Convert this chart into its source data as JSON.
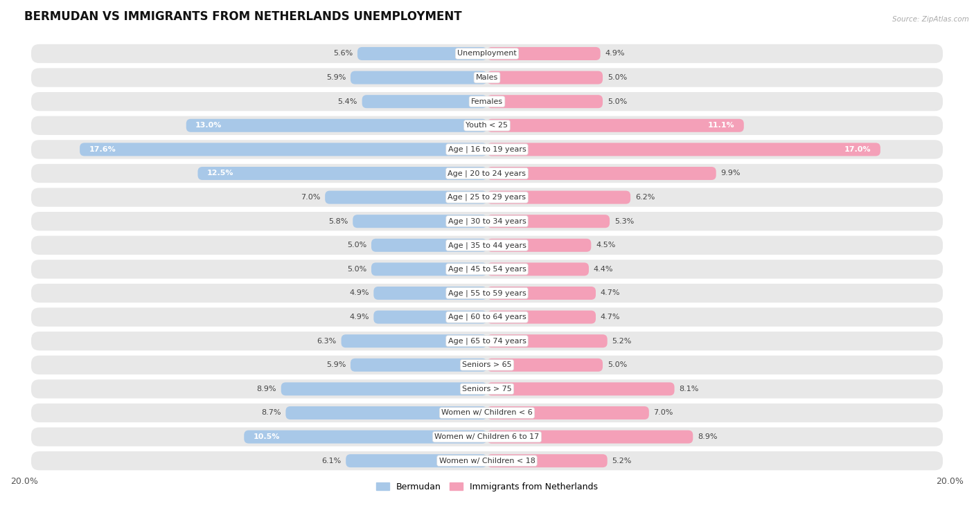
{
  "title": "BERMUDAN VS IMMIGRANTS FROM NETHERLANDS UNEMPLOYMENT",
  "source": "Source: ZipAtlas.com",
  "categories": [
    "Unemployment",
    "Males",
    "Females",
    "Youth < 25",
    "Age | 16 to 19 years",
    "Age | 20 to 24 years",
    "Age | 25 to 29 years",
    "Age | 30 to 34 years",
    "Age | 35 to 44 years",
    "Age | 45 to 54 years",
    "Age | 55 to 59 years",
    "Age | 60 to 64 years",
    "Age | 65 to 74 years",
    "Seniors > 65",
    "Seniors > 75",
    "Women w/ Children < 6",
    "Women w/ Children 6 to 17",
    "Women w/ Children < 18"
  ],
  "bermudan": [
    5.6,
    5.9,
    5.4,
    13.0,
    17.6,
    12.5,
    7.0,
    5.8,
    5.0,
    5.0,
    4.9,
    4.9,
    6.3,
    5.9,
    8.9,
    8.7,
    10.5,
    6.1
  ],
  "netherlands": [
    4.9,
    5.0,
    5.0,
    11.1,
    17.0,
    9.9,
    6.2,
    5.3,
    4.5,
    4.4,
    4.7,
    4.7,
    5.2,
    5.0,
    8.1,
    7.0,
    8.9,
    5.2
  ],
  "max_val": 20.0,
  "bar_color_bermudan": "#a8c8e8",
  "bar_color_netherlands": "#f4a0b8",
  "bar_color_bermudan_dark": "#7aaed8",
  "bar_color_netherlands_dark": "#ef6090",
  "row_bg_color": "#e8e8e8",
  "title_fontsize": 12,
  "label_fontsize": 8,
  "value_fontsize": 8,
  "axis_label_fontsize": 9
}
